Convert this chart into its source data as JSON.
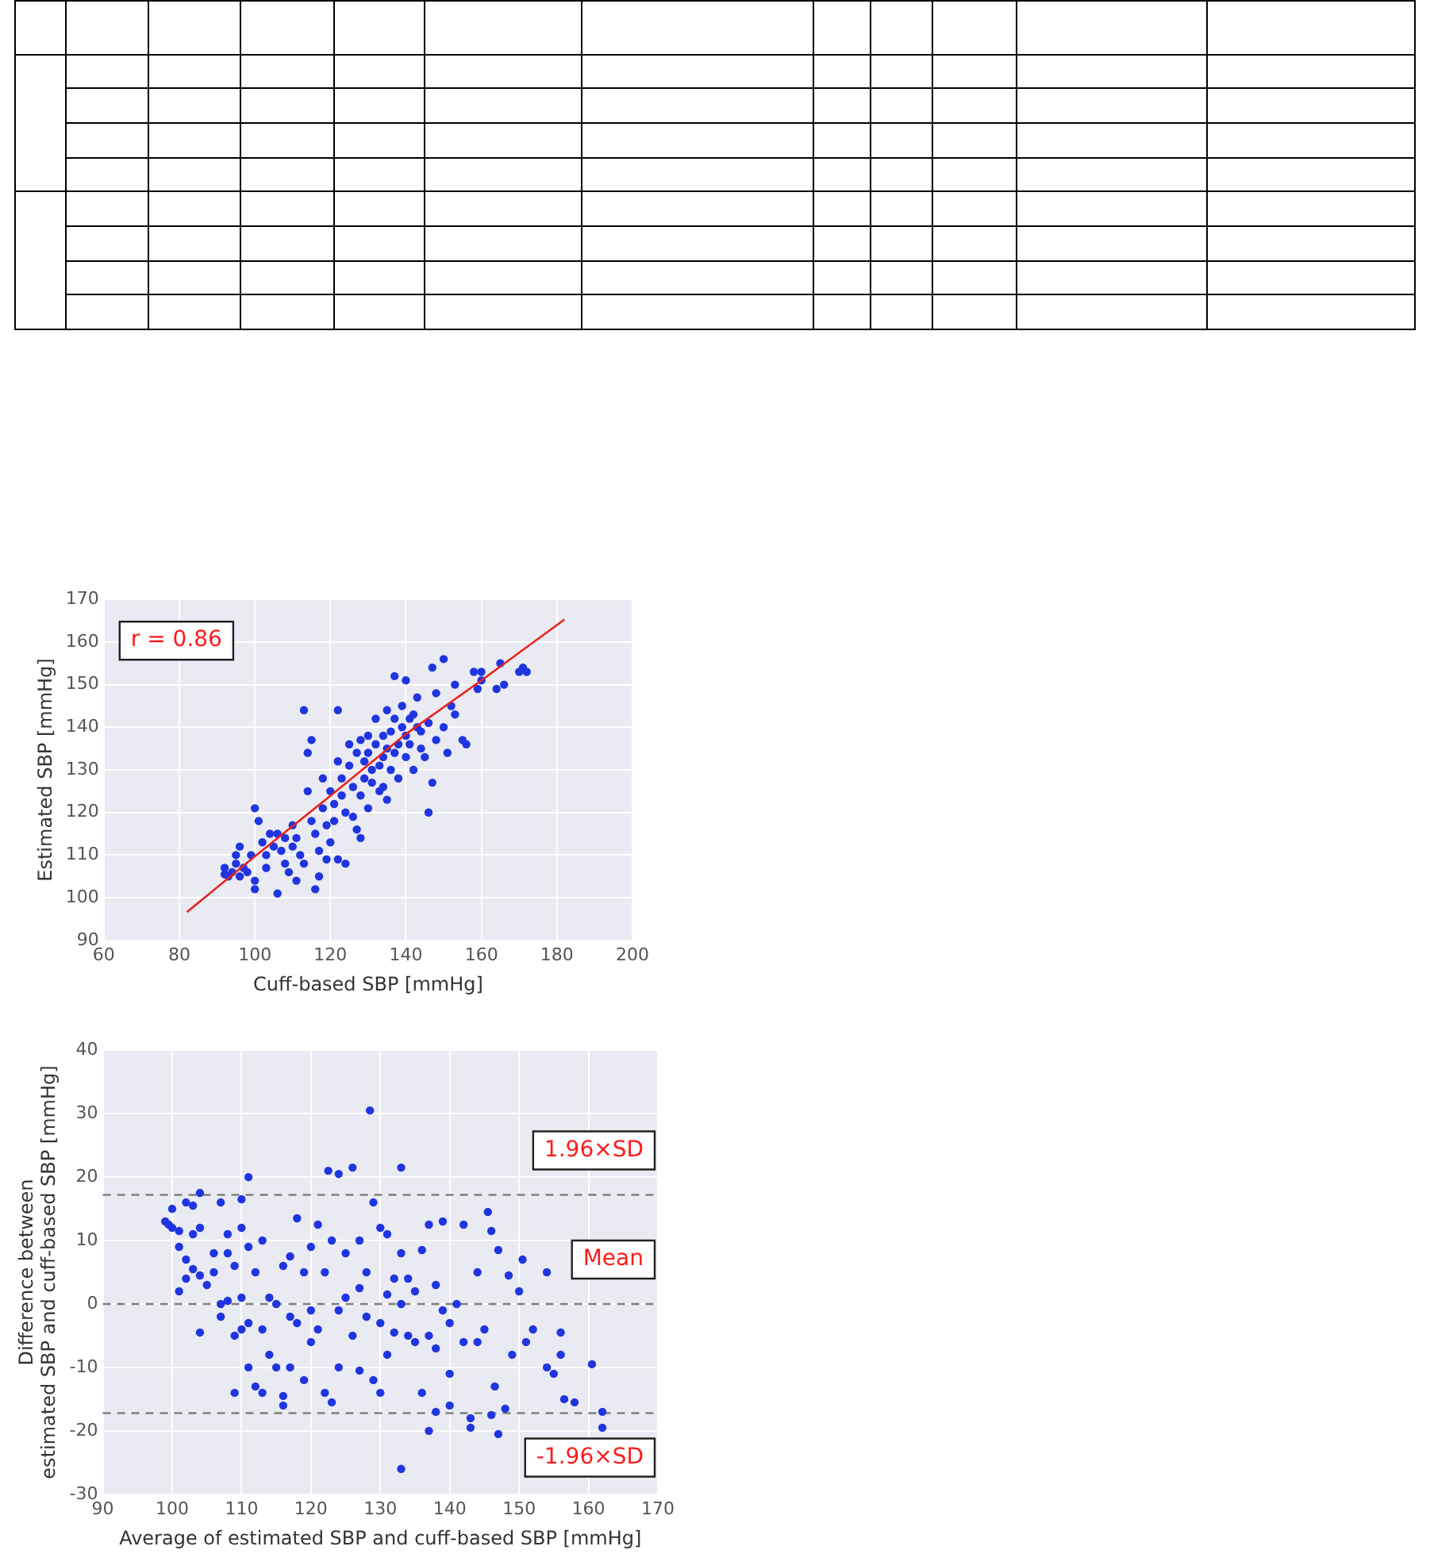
{
  "chart_data": [
    {
      "type": "scatter",
      "xlabel": "Cuff-based SBP [mmHg]",
      "ylabel": "Estimated SBP [mmHg]",
      "xlim": [
        60,
        200
      ],
      "xticks": [
        60,
        80,
        100,
        120,
        140,
        160,
        180,
        200
      ],
      "ylim": [
        90,
        170
      ],
      "yticks": [
        90,
        100,
        110,
        120,
        130,
        140,
        150,
        160,
        170
      ],
      "grid": true,
      "legend": false,
      "marker": "circle",
      "annotations": [
        "r = 0.86"
      ],
      "series": [
        {
          "color": "#1f35e0",
          "x": [
            92,
            92,
            93,
            94,
            95,
            95,
            96,
            96,
            97,
            98,
            99,
            100,
            100,
            100,
            101,
            102,
            103,
            103,
            104,
            105,
            106,
            106,
            107,
            108,
            108,
            109,
            110,
            110,
            111,
            111,
            112,
            113,
            113,
            114,
            114,
            115,
            115,
            116,
            116,
            117,
            117,
            118,
            118,
            119,
            119,
            120,
            120,
            121,
            121,
            122,
            122,
            122,
            123,
            123,
            124,
            124,
            125,
            125,
            126,
            126,
            127,
            127,
            128,
            128,
            128,
            129,
            129,
            130,
            130,
            130,
            131,
            131,
            132,
            132,
            133,
            133,
            134,
            134,
            134,
            135,
            135,
            135,
            136,
            136,
            137,
            137,
            137,
            138,
            138,
            139,
            139,
            140,
            140,
            140,
            141,
            141,
            142,
            142,
            143,
            143,
            144,
            144,
            145,
            146,
            146,
            147,
            147,
            148,
            148,
            150,
            150,
            151,
            152,
            153,
            153,
            155,
            156,
            158,
            159,
            160,
            160,
            164,
            165,
            166,
            170,
            171,
            172
          ],
          "values": [
            107,
            105.5,
            105,
            106,
            108,
            110,
            112,
            105,
            107,
            106,
            110,
            104,
            102,
            121,
            118,
            113,
            110,
            107,
            115,
            112,
            101,
            115,
            111,
            114,
            108,
            106,
            117,
            112,
            114,
            104,
            110,
            108,
            144,
            125,
            134,
            137,
            118,
            102,
            115,
            111,
            105,
            128,
            121,
            109,
            117,
            125,
            113,
            122,
            118,
            144,
            132,
            109,
            128,
            124,
            120,
            108,
            131,
            136,
            119,
            126,
            134,
            116,
            137,
            124,
            114,
            132,
            128,
            138,
            134,
            121,
            130,
            127,
            136,
            142,
            131,
            125,
            138,
            133,
            126,
            144,
            135,
            123,
            139,
            130,
            142,
            152,
            134,
            136,
            128,
            140,
            145,
            138,
            133,
            151,
            142,
            136,
            143,
            130,
            140,
            147,
            139,
            135,
            133,
            120,
            141,
            154,
            127,
            148,
            137,
            156,
            140,
            134,
            145,
            150,
            143,
            137,
            136,
            153,
            149,
            151,
            153,
            149,
            155,
            150,
            153,
            154,
            153
          ]
        },
        {
          "type": "line",
          "marker": "none",
          "color": "#e8231e",
          "x": [
            82,
            100,
            120,
            140,
            160,
            182
          ],
          "values": [
            96.6,
            109.7,
            123.9,
            138.4,
            151,
            165.3
          ]
        }
      ]
    },
    {
      "type": "scatter",
      "xlabel": "Average of estimated SBP and cuff-based SBP [mmHg]",
      "ylabel": "Difference between\nestimated SBP and cuff-based SBP [mmHg]",
      "xlim": [
        90,
        170
      ],
      "xticks": [
        90,
        100,
        110,
        120,
        130,
        140,
        150,
        160,
        170
      ],
      "ylim": [
        -30,
        40
      ],
      "yticks": [
        -30,
        -20,
        -10,
        0,
        10,
        20,
        30,
        40
      ],
      "grid": true,
      "legend": false,
      "marker": "circle",
      "ref_lines": [
        {
          "axis": "y",
          "value": 17.2,
          "label": "1.96×SD",
          "color": "#808080",
          "line_style": "dashed"
        },
        {
          "axis": "y",
          "value": 0,
          "label": "Mean",
          "color": "#808080",
          "line_style": "dashed"
        },
        {
          "axis": "y",
          "value": -17.2,
          "label": "-1.96×SD",
          "color": "#808080",
          "line_style": "dashed"
        }
      ],
      "series": [
        {
          "color": "#1f35e0",
          "x": [
            99,
            99.5,
            100,
            100,
            101,
            101,
            101,
            102,
            102,
            102,
            103,
            103,
            103,
            104,
            104,
            104,
            104,
            105,
            106,
            106,
            107,
            107,
            107,
            108,
            108,
            108,
            109,
            109,
            109,
            110,
            110,
            110,
            110,
            111,
            111,
            111,
            111,
            112,
            112,
            113,
            113,
            113,
            114,
            114,
            115,
            115,
            116,
            116,
            116,
            117,
            117,
            117,
            118,
            118,
            119,
            119,
            120,
            120,
            120,
            121,
            121,
            122,
            122,
            122.5,
            123,
            123,
            124,
            124,
            124,
            125,
            125,
            126,
            126,
            127,
            127,
            127,
            128,
            128,
            128.5,
            129,
            129,
            130,
            130,
            130,
            131,
            131,
            131,
            132,
            132,
            133,
            133,
            133,
            133,
            134,
            134,
            135,
            135,
            136,
            136,
            137,
            137,
            137,
            138,
            138,
            138,
            139,
            139,
            140,
            140,
            140,
            141,
            142,
            142,
            143,
            143,
            144,
            144,
            145,
            145.5,
            146,
            146,
            146.5,
            147,
            147,
            148,
            148.5,
            149,
            150,
            150.5,
            151,
            152,
            154,
            154,
            155,
            156,
            156,
            156.5,
            158,
            160.5,
            162,
            162
          ],
          "values": [
            13,
            12.5,
            15,
            12,
            11.5,
            9,
            2,
            16,
            7,
            4,
            15.5,
            11,
            5.5,
            17.5,
            12,
            -4.5,
            4.5,
            3,
            8,
            5,
            16,
            0,
            -2,
            11,
            8,
            0.5,
            -5,
            -14,
            6,
            16.5,
            12,
            1,
            -4,
            9,
            20,
            -3,
            -10,
            -13,
            5,
            10,
            -4,
            -14,
            -8,
            1,
            0,
            -10,
            6,
            -14.5,
            -16,
            7.5,
            -2,
            -10,
            13.5,
            -3,
            5,
            -12,
            9,
            -1,
            -6,
            12.5,
            -4,
            -14,
            5,
            21,
            -15.5,
            10,
            -1,
            20.5,
            -10,
            8,
            1,
            21.5,
            -5,
            10,
            -10.5,
            2.5,
            5,
            -2,
            30.5,
            -12,
            16,
            -14,
            12,
            -3,
            11,
            -8,
            1.5,
            4,
            -4.5,
            21.5,
            -26,
            0,
            8,
            -5,
            4,
            -6,
            2,
            8.5,
            -14,
            -20,
            12.5,
            -5,
            -7,
            3,
            -17,
            -1,
            13,
            -16,
            -11,
            -3,
            0,
            12.5,
            -6,
            -18,
            -19.5,
            5,
            -6,
            -4,
            14.5,
            11.5,
            -17.5,
            -13,
            -20.5,
            8.5,
            -16.5,
            4.5,
            -8,
            2,
            7,
            -6,
            -4,
            5,
            -10,
            -11,
            -4.5,
            -8,
            -15,
            -15.5,
            -9.5,
            -17,
            -19.5
          ]
        }
      ]
    }
  ]
}
